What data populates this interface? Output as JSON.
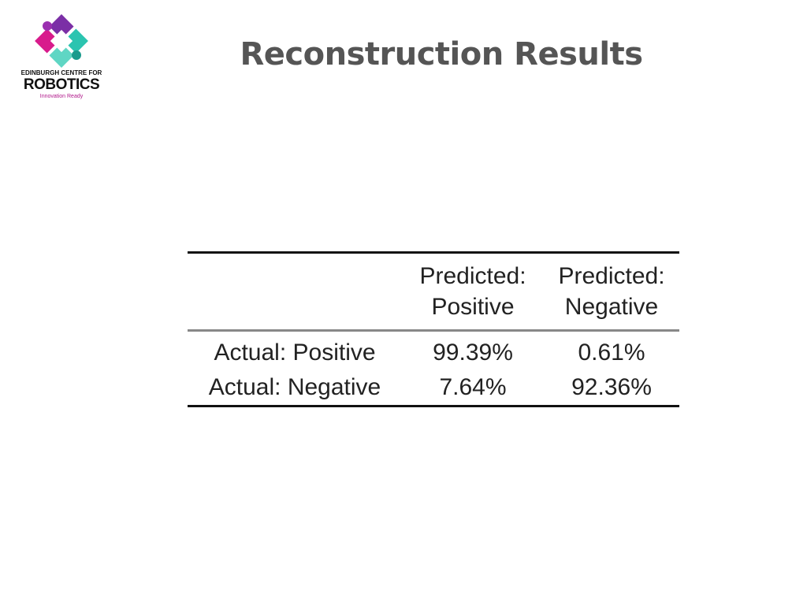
{
  "logo": {
    "top_line": "EDINBURGH CENTRE FOR",
    "main": "ROBOTICS",
    "tagline": "Innovation Ready"
  },
  "title": "Reconstruction Results",
  "table": {
    "columns": [
      "Predicted: Positive",
      "Predicted: Negative"
    ],
    "rows": [
      [
        "Actual: Positive",
        "99.39%",
        "0.61%"
      ],
      [
        "Actual: Negative",
        "7.64%",
        "92.36%"
      ]
    ]
  }
}
